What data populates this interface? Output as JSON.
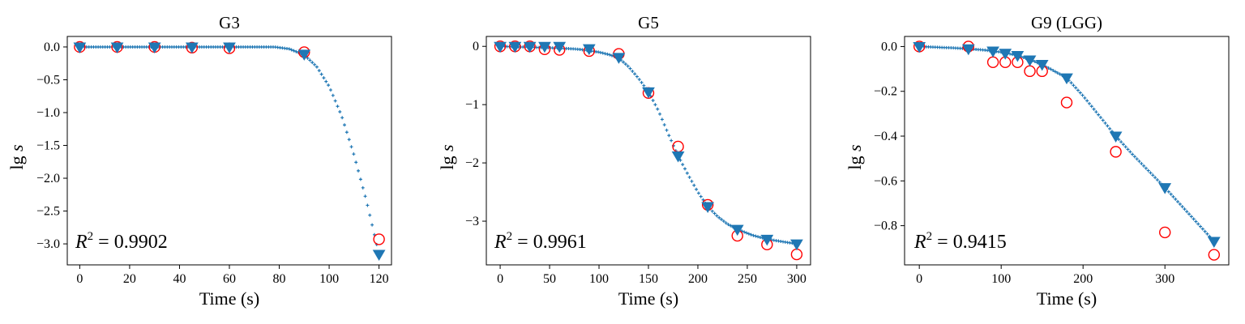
{
  "figure": {
    "background": "#ffffff"
  },
  "chart_data": [
    {
      "type": "scatter",
      "title": "G3",
      "xlabel": "Time (s)",
      "ylabel": "lg s",
      "xlim": [
        -5,
        125
      ],
      "ylim": [
        -3.32,
        0.16
      ],
      "xticks": [
        0,
        20,
        40,
        60,
        80,
        100,
        120
      ],
      "yticks": [
        0.0,
        -0.5,
        -1.0,
        -1.5,
        -2.0,
        -2.5,
        -3.0
      ],
      "xtick_labels": [
        "0",
        "20",
        "40",
        "60",
        "80",
        "100",
        "120"
      ],
      "ytick_labels": [
        "0.0",
        "−0.5",
        "−1.0",
        "−1.5",
        "−2.0",
        "−2.5",
        "−3.0"
      ],
      "annotation": {
        "text": "R² = 0.9902",
        "base": "R",
        "sup": "2",
        "rest": " = 0.9902"
      },
      "series": [
        {
          "role": "measured",
          "marker": "open-circle",
          "color": "#ff0000",
          "x": [
            0,
            15,
            30,
            45,
            60,
            90,
            120
          ],
          "y": [
            0.0,
            0.0,
            0.0,
            -0.01,
            -0.02,
            -0.08,
            -2.93
          ]
        },
        {
          "role": "predicted",
          "marker": "triangle-down",
          "color": "#1f77b4",
          "x": [
            0,
            15,
            30,
            45,
            60,
            90,
            120
          ],
          "y": [
            0.0,
            0.0,
            0.0,
            0.0,
            0.0,
            -0.11,
            -3.16
          ]
        },
        {
          "role": "fit",
          "marker": "plus",
          "color": "#1f77b4",
          "x": [
            0,
            10,
            20,
            30,
            40,
            50,
            60,
            70,
            78,
            84,
            90,
            95,
            100,
            105,
            110,
            115,
            120
          ],
          "y": [
            0,
            0,
            0,
            0,
            0,
            0,
            0,
            0,
            0,
            -0.03,
            -0.12,
            -0.3,
            -0.6,
            -1.05,
            -1.65,
            -2.35,
            -3.16
          ]
        }
      ]
    },
    {
      "type": "scatter",
      "title": "G5",
      "xlabel": "Time (s)",
      "ylabel": "lg s",
      "xlim": [
        -14,
        314
      ],
      "ylim": [
        -3.75,
        0.17
      ],
      "xticks": [
        0,
        50,
        100,
        150,
        200,
        250,
        300
      ],
      "yticks": [
        0,
        -1,
        -2,
        -3
      ],
      "xtick_labels": [
        "0",
        "50",
        "100",
        "150",
        "200",
        "250",
        "300"
      ],
      "ytick_labels": [
        "0",
        "−1",
        "−2",
        "−3"
      ],
      "annotation": {
        "text": "R² = 0.9961",
        "base": "R",
        "sup": "2",
        "rest": " = 0.9961"
      },
      "series": [
        {
          "role": "measured",
          "marker": "open-circle",
          "color": "#ff0000",
          "x": [
            0,
            15,
            30,
            45,
            60,
            90,
            120,
            150,
            180,
            210,
            240,
            270,
            300
          ],
          "y": [
            0,
            0,
            0,
            -0.05,
            -0.06,
            -0.08,
            -0.13,
            -0.8,
            -1.72,
            -2.72,
            -3.25,
            -3.4,
            -3.57
          ]
        },
        {
          "role": "predicted",
          "marker": "triangle-down",
          "color": "#1f77b4",
          "x": [
            0,
            15,
            30,
            45,
            60,
            90,
            120,
            150,
            180,
            210,
            240,
            270,
            300
          ],
          "y": [
            0,
            0,
            0,
            0,
            0,
            -0.04,
            -0.19,
            -0.78,
            -1.88,
            -2.75,
            -3.14,
            -3.31,
            -3.39
          ]
        },
        {
          "role": "fit",
          "marker": "plus",
          "color": "#1f77b4",
          "x": [
            0,
            20,
            40,
            60,
            80,
            100,
            110,
            120,
            130,
            140,
            150,
            160,
            170,
            180,
            190,
            200,
            210,
            220,
            230,
            240,
            255,
            270,
            285,
            300
          ],
          "y": [
            0,
            -0.01,
            -0.02,
            -0.03,
            -0.05,
            -0.1,
            -0.14,
            -0.2,
            -0.35,
            -0.55,
            -0.78,
            -1.1,
            -1.5,
            -1.88,
            -2.2,
            -2.5,
            -2.75,
            -2.92,
            -3.05,
            -3.14,
            -3.24,
            -3.31,
            -3.35,
            -3.39
          ]
        }
      ]
    },
    {
      "type": "scatter",
      "title": "G9 (LGG)",
      "xlabel": "Time (s)",
      "ylabel": "lg s",
      "xlim": [
        -18,
        378
      ],
      "ylim": [
        -0.975,
        0.045
      ],
      "xticks": [
        0,
        100,
        200,
        300
      ],
      "yticks": [
        0.0,
        -0.2,
        -0.4,
        -0.6,
        -0.8
      ],
      "xtick_labels": [
        "0",
        "100",
        "200",
        "300"
      ],
      "ytick_labels": [
        "0.0",
        "−0.2",
        "−0.4",
        "−0.6",
        "−0.8"
      ],
      "annotation": {
        "text": "R² = 0.9415",
        "base": "R",
        "sup": "2",
        "rest": " = 0.9415"
      },
      "series": [
        {
          "role": "measured",
          "marker": "open-circle",
          "color": "#ff0000",
          "x": [
            0,
            60,
            90,
            105,
            120,
            135,
            150,
            180,
            240,
            300,
            360
          ],
          "y": [
            0.0,
            0.0,
            -0.07,
            -0.07,
            -0.07,
            -0.11,
            -0.11,
            -0.25,
            -0.47,
            -0.83,
            -0.93
          ]
        },
        {
          "role": "predicted",
          "marker": "triangle-down",
          "color": "#1f77b4",
          "x": [
            0,
            60,
            90,
            105,
            120,
            135,
            150,
            180,
            240,
            300,
            360
          ],
          "y": [
            0.0,
            -0.01,
            -0.02,
            -0.03,
            -0.04,
            -0.06,
            -0.08,
            -0.14,
            -0.4,
            -0.63,
            -0.87
          ]
        },
        {
          "role": "fit",
          "marker": "plus",
          "color": "#1f77b4",
          "x": [
            0,
            20,
            40,
            60,
            80,
            100,
            120,
            140,
            160,
            180,
            200,
            220,
            240,
            260,
            280,
            300,
            320,
            340,
            360
          ],
          "y": [
            0,
            -0.003,
            -0.006,
            -0.01,
            -0.016,
            -0.025,
            -0.04,
            -0.065,
            -0.1,
            -0.14,
            -0.22,
            -0.31,
            -0.4,
            -0.48,
            -0.555,
            -0.63,
            -0.71,
            -0.79,
            -0.87
          ]
        }
      ]
    }
  ]
}
